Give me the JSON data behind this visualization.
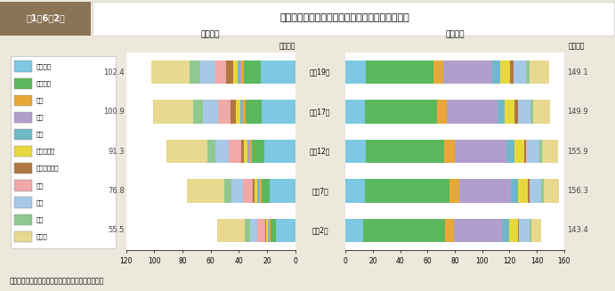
{
  "title_label": "専攻分野別にみた学生数（大学（学部））の推移",
  "header_label": "第1－6－2図",
  "years": [
    "平成2年",
    "平成7年",
    "平成12年",
    "平成17年",
    "平成19年"
  ],
  "female_totals": [
    55.5,
    76.8,
    91.3,
    100.9,
    102.4
  ],
  "male_totals": [
    143.4,
    156.3,
    155.9,
    149.9,
    149.1
  ],
  "categories": [
    "人文科学",
    "社会科学",
    "理学",
    "工学",
    "農学",
    "医学・歯学",
    "その他の保健",
    "家政",
    "教育",
    "芸術",
    "その他"
  ],
  "colors": [
    "#7ec8e3",
    "#5cb85c",
    "#e8a838",
    "#b09fcc",
    "#70b8c8",
    "#e8d840",
    "#b07840",
    "#f0a8a8",
    "#a8c8e8",
    "#90c890",
    "#e8d890"
  ],
  "female_data": [
    [
      14.0,
      3.5,
      0.8,
      0.5,
      0.5,
      1.5,
      0.5,
      5.5,
      5.5,
      3.5,
      19.7
    ],
    [
      18.0,
      6.0,
      1.2,
      0.8,
      0.8,
      2.0,
      1.0,
      7.5,
      8.0,
      5.0,
      26.5
    ],
    [
      22.0,
      8.5,
      1.5,
      1.0,
      1.0,
      2.5,
      2.0,
      8.5,
      9.5,
      6.0,
      28.8
    ],
    [
      24.0,
      11.0,
      1.8,
      1.2,
      1.2,
      3.0,
      4.0,
      8.5,
      10.5,
      7.0,
      28.7
    ],
    [
      24.5,
      12.0,
      1.8,
      1.3,
      1.2,
      3.0,
      5.0,
      8.0,
      10.5,
      7.5,
      27.6
    ]
  ],
  "male_data": [
    [
      13.0,
      60.0,
      6.5,
      35.0,
      5.0,
      6.5,
      1.0,
      0.2,
      7.5,
      1.5,
      7.2
    ],
    [
      14.0,
      62.0,
      7.0,
      38.0,
      5.5,
      7.0,
      1.2,
      0.2,
      8.5,
      2.0,
      10.9
    ],
    [
      14.5,
      58.0,
      7.5,
      38.0,
      5.5,
      7.5,
      1.5,
      0.2,
      9.0,
      2.5,
      11.7
    ],
    [
      14.0,
      53.0,
      7.0,
      37.0,
      5.5,
      7.5,
      2.0,
      0.2,
      9.0,
      2.5,
      12.2
    ],
    [
      14.5,
      50.0,
      7.0,
      36.0,
      5.5,
      7.5,
      2.5,
      0.2,
      9.0,
      2.5,
      14.4
    ]
  ],
  "note": "（備考）　文部科学省「学校基本調査」より作成。",
  "bg_color": "#ede8dc",
  "header_bg": "#8B7355",
  "female_label": "〈女性〉",
  "male_label": "〈男性〉",
  "unit_label": "（万人）"
}
